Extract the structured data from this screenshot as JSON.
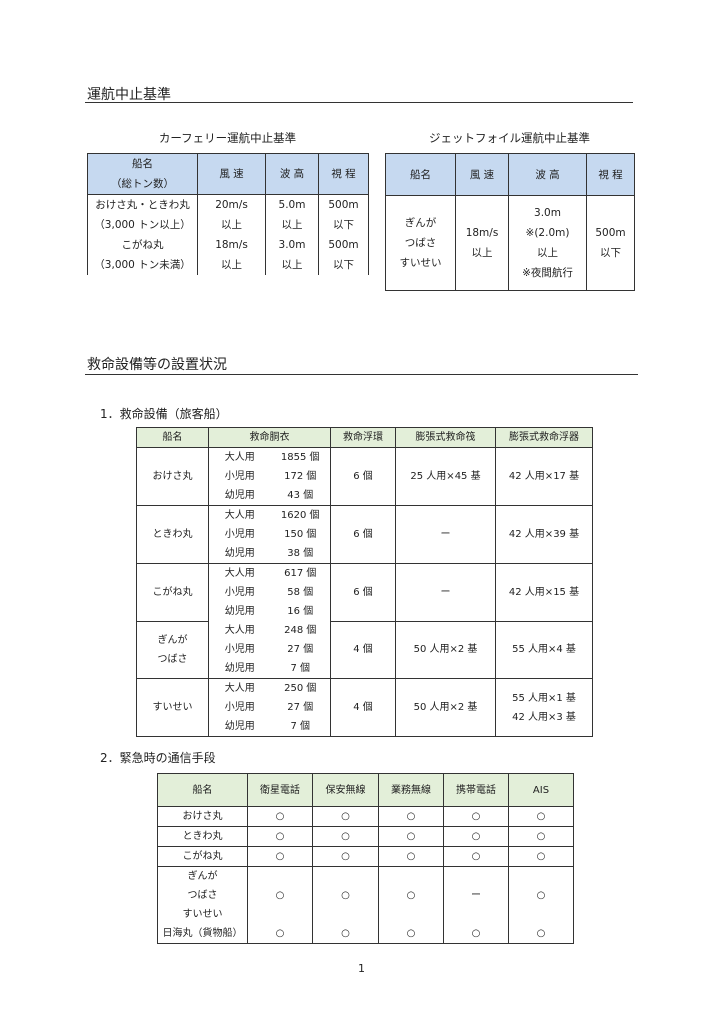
{
  "section1": {
    "title": "運航中止基準",
    "ferry": {
      "caption": "カーフェリー運航中止基準",
      "headers": [
        "船名",
        "（総トン数）",
        "風 速",
        "波 高",
        "視 程"
      ],
      "rows": [
        {
          "name": [
            "おけさ丸・ときわ丸",
            "（3,000 トン以上）"
          ],
          "wind": [
            "20m/s",
            "以上"
          ],
          "wave": [
            "5.0m",
            "以上"
          ],
          "vis": [
            "500m",
            "以下"
          ]
        },
        {
          "name": [
            "こがね丸",
            "（3,000 トン未満）"
          ],
          "wind": [
            "18m/s",
            "以上"
          ],
          "wave": [
            "3.0m",
            "以上"
          ],
          "vis": [
            "500m",
            "以下"
          ]
        }
      ]
    },
    "jetfoil": {
      "caption": "ジェットフォイル運航中止基準",
      "headers": [
        "船名",
        "風 速",
        "波 高",
        "視 程"
      ],
      "names": [
        "ぎんが",
        "つばさ",
        "すいせい"
      ],
      "wind": [
        "18m/s",
        "以上"
      ],
      "wave": [
        "3.0m",
        "※(2.0m)",
        "以上",
        "※夜間航行"
      ],
      "vis": [
        "500m",
        "以下"
      ]
    }
  },
  "section2": {
    "title": "救命設備等の設置状況",
    "lifesaving": {
      "title": "1．救命設備（旅客船）",
      "headers": [
        "船名",
        "救命胴衣",
        "救命浮環",
        "膨張式救命筏",
        "膨張式救命浮器"
      ],
      "groups": [
        {
          "ships": [
            "おけさ丸"
          ],
          "vests": [
            [
              "大人用",
              "1855 個"
            ],
            [
              "小児用",
              "172 個"
            ],
            [
              "幼児用",
              "43 個"
            ]
          ],
          "rings": "6 個",
          "rafts": [
            "25 人用×45 基"
          ],
          "buoyant": [
            "42 人用×17 基"
          ]
        },
        {
          "ships": [
            "ときわ丸"
          ],
          "vests": [
            [
              "大人用",
              "1620 個"
            ],
            [
              "小児用",
              "150 個"
            ],
            [
              "幼児用",
              "38 個"
            ]
          ],
          "rings": "6 個",
          "rafts": [
            "ー"
          ],
          "buoyant": [
            "42 人用×39 基"
          ]
        },
        {
          "ships": [
            "こがね丸"
          ],
          "vests": [
            [
              "大人用",
              "617 個"
            ],
            [
              "小児用",
              "58 個"
            ],
            [
              "幼児用",
              "16 個"
            ]
          ],
          "rings": "6 個",
          "rafts": [
            "ー"
          ],
          "buoyant": [
            "42 人用×15 基"
          ],
          "noBottom": true
        },
        {
          "ships": [
            "ぎんが",
            "つばさ"
          ],
          "vests": [
            [
              "大人用",
              "248 個"
            ],
            [
              "小児用",
              "27 個"
            ],
            [
              "幼児用",
              "7 個"
            ]
          ],
          "rings": "4 個",
          "rafts": [
            "50 人用×2 基"
          ],
          "buoyant": [
            "55 人用×4 基"
          ]
        },
        {
          "ships": [
            "すいせい"
          ],
          "vests": [
            [
              "大人用",
              "250 個"
            ],
            [
              "小児用",
              "27 個"
            ],
            [
              "幼児用",
              "7 個"
            ]
          ],
          "rings": "4 個",
          "rafts": [
            "50 人用×2 基"
          ],
          "buoyant": [
            "55 人用×1 基",
            "42 人用×3 基"
          ]
        }
      ]
    },
    "comms": {
      "title": "2．緊急時の通信手段",
      "headers": [
        "船名",
        "衛星電話",
        "保安無線",
        "業務無線",
        "携帯電話",
        "AIS"
      ],
      "rows": [
        {
          "ships": [
            "おけさ丸"
          ],
          "values": [
            "○",
            "○",
            "○",
            "○",
            "○"
          ]
        },
        {
          "ships": [
            "ときわ丸"
          ],
          "values": [
            "○",
            "○",
            "○",
            "○",
            "○"
          ]
        },
        {
          "ships": [
            "こがね丸"
          ],
          "values": [
            "○",
            "○",
            "○",
            "○",
            "○"
          ]
        },
        {
          "ships": [
            "ぎんが",
            "つばさ",
            "すいせい"
          ],
          "values": [
            "○",
            "○",
            "○",
            "ー",
            "○"
          ],
          "noBottom": true
        },
        {
          "ships": [
            "日海丸（貨物船）"
          ],
          "values": [
            "○",
            "○",
            "○",
            "○",
            "○"
          ]
        }
      ]
    }
  },
  "page_number": "1"
}
